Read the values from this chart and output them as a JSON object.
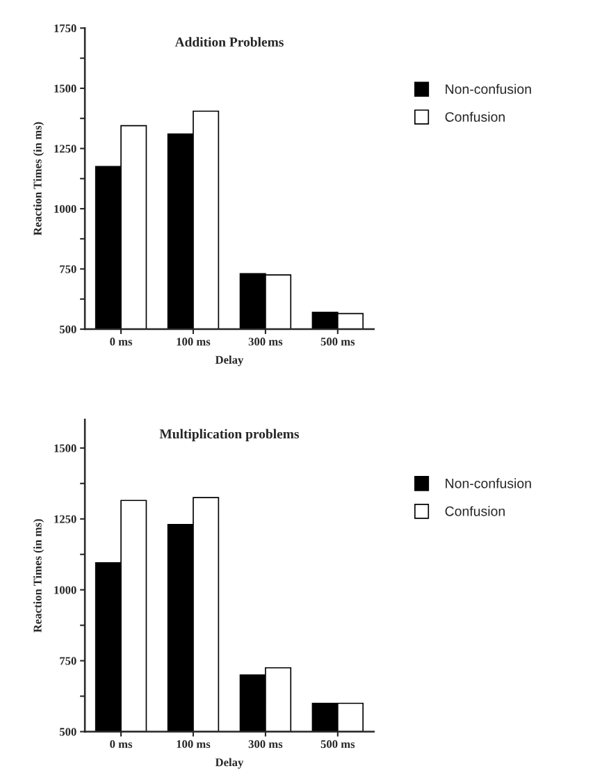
{
  "chart_data": [
    {
      "type": "bar",
      "title": "Addition Problems",
      "xlabel": "Delay",
      "ylabel": "Reaction Times (in ms)",
      "categories": [
        "0 ms",
        "100 ms",
        "300 ms",
        "500 ms"
      ],
      "series": [
        {
          "name": "Non-confusion",
          "color": "#000000",
          "values": [
            1175,
            1310,
            730,
            570
          ]
        },
        {
          "name": "Confusion",
          "color": "#ffffff",
          "values": [
            1345,
            1405,
            725,
            565
          ]
        }
      ],
      "ylim": [
        500,
        1750
      ],
      "yticks": [
        500,
        {
          "value": 625,
          "label": null
        },
        750,
        {
          "value": 875,
          "label": null
        },
        1000,
        {
          "value": 1125,
          "label": null
        },
        1250,
        {
          "value": 1375,
          "label": null
        },
        1500,
        {
          "value": 1625,
          "label": null
        },
        1750
      ],
      "grid": false,
      "legend": "right"
    },
    {
      "type": "bar",
      "title": "Multiplication problems",
      "xlabel": "Delay",
      "ylabel": "Reaction Times (in ms)",
      "categories": [
        "0 ms",
        "100 ms",
        "300 ms",
        "500 ms"
      ],
      "series": [
        {
          "name": "Non-confusion",
          "color": "#000000",
          "values": [
            1095,
            1230,
            700,
            600
          ]
        },
        {
          "name": "Confusion",
          "color": "#ffffff",
          "values": [
            1315,
            1325,
            725,
            600
          ]
        }
      ],
      "ylim": [
        500,
        1600
      ],
      "yticks": [
        500,
        {
          "value": 625,
          "label": null
        },
        750,
        {
          "value": 875,
          "label": null
        },
        1000,
        {
          "value": 1125,
          "label": null
        },
        1250,
        {
          "value": 1375,
          "label": null
        },
        1500
      ],
      "grid": false,
      "legend": "right"
    }
  ]
}
